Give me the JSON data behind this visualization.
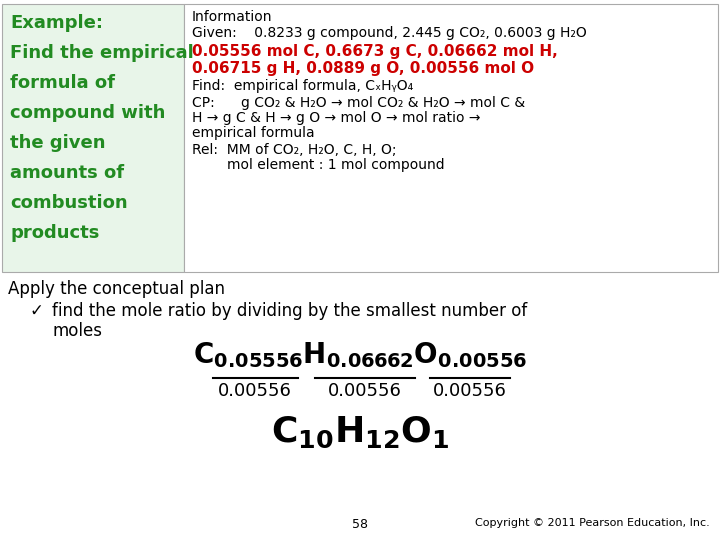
{
  "bg_color": "#ffffff",
  "left_box_bg": "#e8f5e9",
  "left_text_color": "#228B22",
  "red_color": "#cc0000",
  "border_color": "#aaaaaa",
  "left_text_lines": [
    "Example:",
    "Find the empirical",
    "formula of",
    "compound with",
    "the given",
    "amounts of",
    "combustion",
    "products"
  ],
  "info_title": "Information",
  "given_line": "Given:    0.8233 g compound, 2.445 g CO₂, 0.6003 g H₂O",
  "red_line1": "0.05556 mol C, 0.6673 g C, 0.06662 mol H,",
  "red_line2": "0.06715 g H, 0.0889 g O, 0.00556 mol O",
  "find_line": "Find:  empirical formula, CₓHᵧO₄",
  "cp_line1": "CP:      g CO₂ & H₂O → mol CO₂ & H₂O → mol C &",
  "cp_line2": "H → g C & H → g O → mol O → mol ratio →",
  "cp_line3": "empirical formula",
  "rel_line1": "Rel:  MM of CO₂, H₂O, C, H, O;",
  "rel_line2": "        mol element : 1 mol compound",
  "apply_text": "Apply the conceptual plan",
  "bullet_char": "✓",
  "bullet_text1": "find the mole ratio by dividing by the smallest number of",
  "bullet_text2": "moles",
  "denom": "0.00556",
  "footer_page": "58",
  "footer_copy": "Copyright © 2011 Pearson Education, Inc."
}
